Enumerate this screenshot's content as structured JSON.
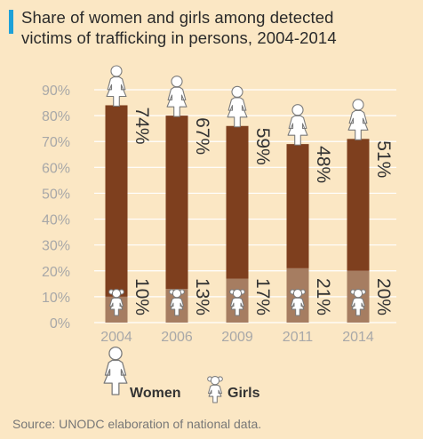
{
  "header": {
    "title_line_1": "Share of women and girls among detected",
    "title_line_2": "victims of trafficking in persons, 2004-2014"
  },
  "chart_data": {
    "type": "bar",
    "stacked": true,
    "title": "Share of women and girls among detected victims of trafficking in persons, 2004-2014",
    "categories": [
      "2004",
      "2006",
      "2009",
      "2011",
      "2014"
    ],
    "series": [
      {
        "name": "Girls",
        "values": [
          10,
          13,
          17,
          21,
          20
        ],
        "labels": [
          "10%",
          "13%",
          "17%",
          "21%",
          "20%"
        ],
        "color": "#a67d61"
      },
      {
        "name": "Women",
        "values": [
          74,
          67,
          59,
          48,
          51
        ],
        "labels": [
          "74%",
          "67%",
          "59%",
          "48%",
          "51%"
        ],
        "color": "#7e3f1e"
      }
    ],
    "ylim": [
      0,
      90
    ],
    "yticks": [
      0,
      10,
      20,
      30,
      40,
      50,
      60,
      70,
      80,
      90
    ],
    "ytick_labels": [
      "0%",
      "10%",
      "20%",
      "30%",
      "40%",
      "50%",
      "60%",
      "70%",
      "80%",
      "90%"
    ],
    "grid": true,
    "legend": {
      "placement": "bottom-left",
      "entries": [
        "Women",
        "Girls"
      ]
    }
  },
  "legend": {
    "women_label": "Women",
    "girls_label": "Girls"
  },
  "footer": {
    "source": "Source: UNODC elaboration of national data."
  },
  "colors": {
    "background": "#fbe7c4",
    "accent": "#1ea1d8",
    "women": "#7e3f1e",
    "girls": "#a67d61",
    "grid": "#ffffff"
  },
  "icons": {
    "women": "woman-icon",
    "girls": "girl-icon"
  }
}
